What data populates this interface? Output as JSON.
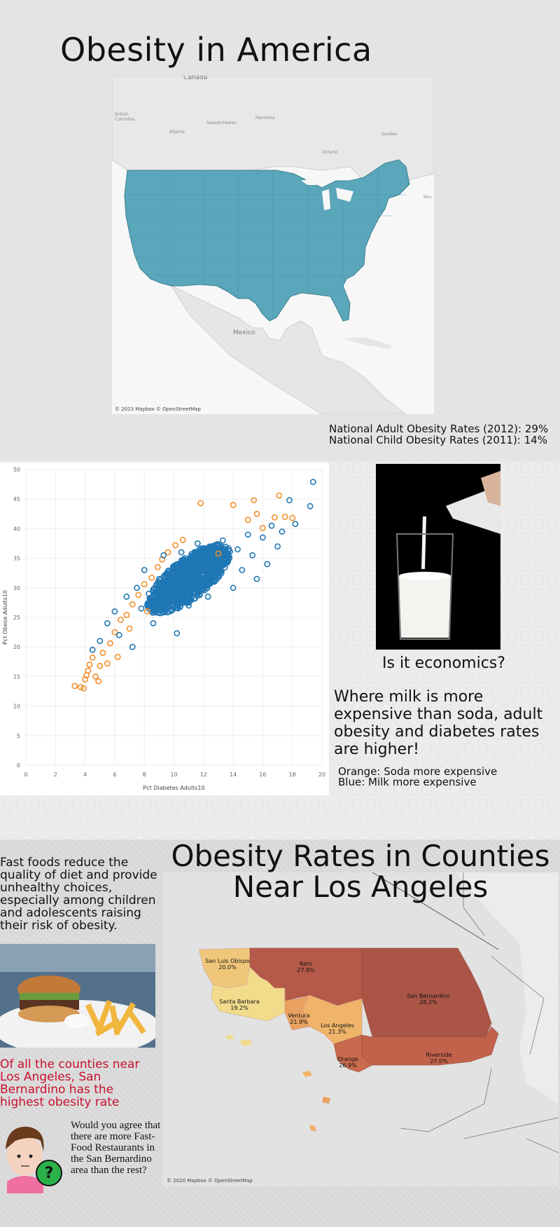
{
  "page": {
    "title": "Obesity in America"
  },
  "us_map": {
    "labels": {
      "canada": "Canada",
      "british_columbia": "British Columbia",
      "alberta": "Alberta",
      "saskatchewan": "Saskatchewan",
      "manitoba": "Manitoba",
      "ontario": "Ontario",
      "quebec": "Quebec",
      "mexico": "Mexico",
      "nova": "Nov"
    },
    "attribution": "© 2023 Mapbox © OpenStreetMap",
    "fill_color": "#5aa6ba"
  },
  "national_stats": {
    "adult": "National Adult Obesity Rates (2012): 29%",
    "child": "National Child Obesity Rates (2011): 14%"
  },
  "chart_data": {
    "type": "scatter",
    "xlabel": "Pct Diabetes Adults10",
    "ylabel": "Pct Obese Adults10",
    "xlim": [
      0,
      20
    ],
    "ylim": [
      0,
      50
    ],
    "x_ticks": [
      "0",
      "2",
      "4",
      "6",
      "8",
      "10",
      "12",
      "14",
      "16",
      "18",
      "20"
    ],
    "y_ticks": [
      "0",
      "5",
      "10",
      "15",
      "20",
      "25",
      "30",
      "35",
      "40",
      "45",
      "50"
    ],
    "grid": true,
    "series": [
      {
        "color": "#f28e2b",
        "points": [
          [
            3.3,
            13.4
          ],
          [
            3.7,
            13.2
          ],
          [
            3.9,
            13.0
          ],
          [
            4.0,
            14.5
          ],
          [
            4.1,
            15.2
          ],
          [
            4.2,
            16.0
          ],
          [
            4.3,
            17.0
          ],
          [
            4.5,
            18.2
          ],
          [
            4.7,
            15.0
          ],
          [
            4.9,
            14.2
          ],
          [
            5.0,
            16.8
          ],
          [
            5.2,
            19.0
          ],
          [
            5.5,
            17.2
          ],
          [
            5.7,
            20.6
          ],
          [
            6.0,
            22.5
          ],
          [
            6.2,
            18.3
          ],
          [
            6.4,
            24.6
          ],
          [
            6.8,
            25.4
          ],
          [
            7.0,
            23.1
          ],
          [
            7.2,
            27.2
          ],
          [
            7.6,
            28.8
          ],
          [
            8.0,
            30.6
          ],
          [
            8.2,
            26.0
          ],
          [
            8.5,
            31.7
          ],
          [
            8.9,
            33.5
          ],
          [
            9.2,
            34.8
          ],
          [
            9.6,
            36.0
          ],
          [
            10.1,
            37.2
          ],
          [
            10.6,
            38.1
          ],
          [
            11.8,
            44.3
          ],
          [
            13.0,
            35.8
          ],
          [
            14.0,
            44.0
          ],
          [
            15.0,
            41.5
          ],
          [
            15.4,
            44.8
          ],
          [
            15.6,
            42.5
          ],
          [
            16.0,
            40.1
          ],
          [
            16.8,
            41.9
          ],
          [
            17.1,
            45.6
          ],
          [
            17.5,
            42.0
          ],
          [
            18.0,
            41.8
          ]
        ]
      },
      {
        "color": "#1f77b4",
        "points": [
          [
            4.5,
            19.5
          ],
          [
            5.0,
            21.0
          ],
          [
            5.5,
            24.0
          ],
          [
            6.0,
            26.0
          ],
          [
            6.3,
            22.0
          ],
          [
            6.8,
            28.5
          ],
          [
            7.2,
            20.0
          ],
          [
            7.5,
            30.0
          ],
          [
            7.8,
            26.5
          ],
          [
            8.0,
            33.0
          ],
          [
            8.3,
            29.0
          ],
          [
            8.6,
            24.0
          ],
          [
            9.0,
            31.5
          ],
          [
            9.3,
            35.5
          ],
          [
            9.6,
            28.0
          ],
          [
            10.0,
            32.5
          ],
          [
            10.2,
            22.3
          ],
          [
            10.5,
            36.0
          ],
          [
            10.8,
            30.5
          ],
          [
            11.0,
            27.0
          ],
          [
            11.3,
            33.5
          ],
          [
            11.6,
            37.5
          ],
          [
            12.0,
            31.0
          ],
          [
            12.3,
            28.5
          ],
          [
            12.6,
            35.0
          ],
          [
            13.0,
            32.5
          ],
          [
            13.3,
            38.0
          ],
          [
            13.6,
            34.5
          ],
          [
            14.0,
            30.0
          ],
          [
            14.3,
            36.5
          ],
          [
            14.6,
            33.0
          ],
          [
            15.0,
            39.0
          ],
          [
            15.3,
            35.5
          ],
          [
            15.6,
            31.5
          ],
          [
            16.0,
            38.5
          ],
          [
            16.3,
            34.0
          ],
          [
            16.6,
            40.5
          ],
          [
            17.0,
            37.0
          ],
          [
            17.3,
            39.5
          ],
          [
            17.8,
            44.8
          ],
          [
            18.2,
            40.8
          ],
          [
            19.2,
            43.8
          ],
          [
            19.4,
            47.9
          ]
        ]
      }
    ]
  },
  "milk": {
    "question": "Is it economics?",
    "claim": "Where milk is more expensive than soda, adult obesity and diabetes rates are higher!",
    "legend_orange": "Orange: Soda more expensive",
    "legend_blue": "Blue: Milk more expensive"
  },
  "fast_food": {
    "text": "Fast foods reduce the quality of diet and provide unhealthy choices, especially among children and adolescents raising their risk of obesity."
  },
  "sb_claim": "Of all the counties near Los Angeles, San Bernardino has the highest obesity rate",
  "question_text": "Would you agree that there are more Fast-Food Restaurants in the San Bernardino area than the rest?",
  "ca_map": {
    "title": "Obesity Rates in Counties Near Los Angeles",
    "attribution": "© 2020 Mapbox © OpenStreetMap",
    "counties": [
      {
        "name": "San Luis Obispo",
        "value": "20.0%",
        "color": "#f0c77a"
      },
      {
        "name": "Kern",
        "value": "27.8%",
        "color": "#b55a4a"
      },
      {
        "name": "Santa Barbara",
        "value": "19.2%",
        "color": "#f2dc8c"
      },
      {
        "name": "Ventura",
        "value": "21.9%",
        "color": "#e9a160"
      },
      {
        "name": "Los Angeles",
        "value": "21.3%",
        "color": "#efb46a"
      },
      {
        "name": "San Bernardino",
        "value": "28.2%",
        "color": "#ab5546"
      },
      {
        "name": "Riverside",
        "value": "27.0%",
        "color": "#c2624b"
      },
      {
        "name": "Orange",
        "value": "26.9%",
        "color": "#c86a4e"
      }
    ]
  }
}
